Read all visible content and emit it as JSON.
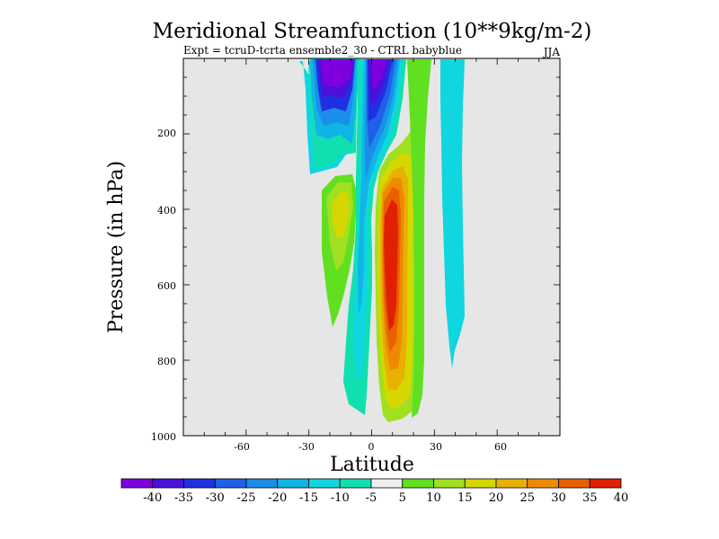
{
  "chart_data": {
    "type": "contour",
    "title": "Meridional Streamfunction (10**9kg/m-2)",
    "subtitle": "Expt = tcruD-tcrta ensemble2_30 - CTRL babyblue",
    "season": "JJA",
    "xlabel": "Latitude",
    "ylabel": "Pressure (in hPa)",
    "xlim": [
      -90,
      90
    ],
    "ylim": [
      1000,
      0
    ],
    "xticks": [
      -60,
      -30,
      0,
      30,
      60
    ],
    "xtick_labels": [
      "-60",
      "-30",
      "0",
      "30",
      "60"
    ],
    "yticks": [
      200,
      400,
      600,
      800,
      1000
    ],
    "ytick_labels": [
      "200",
      "400",
      "600",
      "800",
      "1000"
    ],
    "background": "#e6e6e6",
    "colorbar": {
      "labels": [
        "-40",
        "-35",
        "-30",
        "-25",
        "-20",
        "-15",
        "-10",
        "-5",
        "5",
        "10",
        "15",
        "20",
        "25",
        "30",
        "35",
        "40"
      ],
      "colors": [
        "#7f00df",
        "#4a10dc",
        "#2030e0",
        "#1f60e8",
        "#1a8ee8",
        "#10b4e6",
        "#10d6e0",
        "#10e0b0",
        "#eeeeee",
        "#60e020",
        "#a0e020",
        "#d4d800",
        "#e8b000",
        "#ef8a00",
        "#e86000",
        "#e02000"
      ]
    },
    "features": [
      {
        "name": "negative-cell-upper-nh",
        "level": -40,
        "lat_range": [
          -30,
          10
        ],
        "p_range": [
          0,
          200
        ]
      },
      {
        "name": "positive-cell-tropics",
        "level": 40,
        "lat_range": [
          2,
          20
        ],
        "p_range": [
          300,
          970
        ]
      },
      {
        "name": "positive-cell-sh",
        "level": 20,
        "lat_range": [
          -22,
          -8
        ],
        "p_range": [
          210,
          740
        ]
      },
      {
        "name": "negative-band-midlat",
        "level": -10,
        "lat_range": [
          35,
          45
        ],
        "p_range": [
          0,
          830
        ]
      }
    ]
  }
}
